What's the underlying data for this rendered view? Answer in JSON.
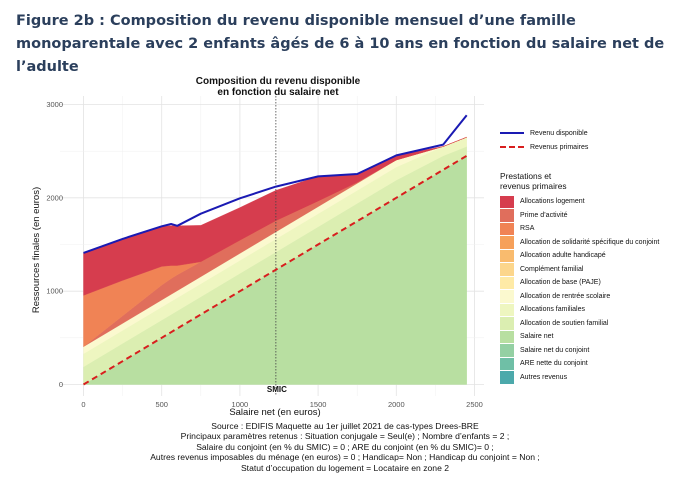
{
  "figure_title": "Figure 2b : Composition du revenu disponible mensuel d’une famille monoparentale avec 2 enfants âgés de 6 à 10 ans en fonction du salaire net de l’adulte",
  "chart_data": {
    "type": "area",
    "title_line1": "Composition du revenu disponible",
    "title_line2": "en fonction du salaire net",
    "xlabel": "Salaire net (en euros)",
    "ylabel": "Ressources finales (en euros)",
    "xlim": [
      0,
      2500
    ],
    "ylim": [
      0,
      3000
    ],
    "x_ticks": [
      0,
      500,
      1000,
      1500,
      2000,
      2500
    ],
    "y_ticks": [
      0,
      1000,
      2000,
      3000
    ],
    "vline": {
      "x": 1230,
      "label": "SMIC"
    },
    "x": [
      0,
      250,
      500,
      560,
      600,
      750,
      1000,
      1230,
      1500,
      1750,
      2000,
      2300,
      2450
    ],
    "stack_series": [
      {
        "name": "Salaire net",
        "color": "#b8dfa1",
        "values": [
          0,
          250,
          500,
          560,
          600,
          750,
          1000,
          1230,
          1500,
          1750,
          2000,
          2300,
          2450
        ]
      },
      {
        "name": "Allocation de soutien familial",
        "color": "#dbeeb1",
        "values": [
          190,
          190,
          190,
          190,
          190,
          190,
          190,
          190,
          190,
          190,
          190,
          150,
          100
        ]
      },
      {
        "name": "Allocations familiales",
        "color": "#eef6c0",
        "values": [
          140,
          140,
          140,
          140,
          140,
          140,
          140,
          140,
          140,
          140,
          140,
          100,
          100
        ]
      },
      {
        "name": "Allocation de rentrée scolaire",
        "color": "#fbf9cf",
        "values": [
          75,
          75,
          75,
          75,
          75,
          75,
          75,
          75,
          75,
          75,
          75,
          0,
          0
        ]
      },
      {
        "name": "Prime d'activité",
        "color": "#e06e5c",
        "values": [
          0,
          80,
          160,
          170,
          170,
          160,
          140,
          120,
          60,
          10,
          0,
          0,
          0
        ]
      },
      {
        "name": "RSA",
        "color": "#f08355",
        "values": [
          550,
          380,
          200,
          140,
          100,
          0,
          0,
          0,
          0,
          0,
          0,
          0,
          0
        ]
      },
      {
        "name": "Allocations logement",
        "color": "#d63d4e",
        "values": [
          455,
          445,
          430,
          425,
          425,
          390,
          350,
          325,
          265,
          90,
          50,
          0,
          0
        ]
      }
    ],
    "lines": [
      {
        "name": "Revenu disponible",
        "color": "#1a1ab3",
        "style": "solid",
        "values": [
          1410,
          1560,
          1695,
          1720,
          1700,
          1830,
          1995,
          2120,
          2230,
          2255,
          2455,
          2570,
          2885
        ]
      },
      {
        "name": "Revenus primaires",
        "color": "#d81e1e",
        "style": "dashed",
        "values": [
          0,
          250,
          500,
          560,
          600,
          750,
          1000,
          1230,
          1500,
          1750,
          2000,
          2300,
          2450
        ]
      }
    ]
  },
  "legend": {
    "lines": [
      {
        "label": "Revenu disponible",
        "color": "#1a1ab3",
        "style": "solid"
      },
      {
        "label": "Revenus primaires",
        "color": "#d81e1e",
        "style": "dashed"
      }
    ],
    "title_line1": "Prestations et",
    "title_line2": "revenus primaires",
    "items": [
      {
        "label": "Allocations logement",
        "color": "#d63d4e"
      },
      {
        "label": "Prime d’activité",
        "color": "#e06e5c"
      },
      {
        "label": "RSA",
        "color": "#f08355"
      },
      {
        "label": "Allocation de solidarité spécifique du conjoint",
        "color": "#f6a05a"
      },
      {
        "label": "Allocation adulte handicapé",
        "color": "#f9bb6e"
      },
      {
        "label": "Complément familial",
        "color": "#fcd68c"
      },
      {
        "label": "Allocation de base (PAJE)",
        "color": "#feeaa6"
      },
      {
        "label": "Allocation de rentrée scolaire",
        "color": "#fbf9cf"
      },
      {
        "label": "Allocations familiales",
        "color": "#eef6c0"
      },
      {
        "label": "Allocation de soutien familial",
        "color": "#dbeeb1"
      },
      {
        "label": "Salaire net",
        "color": "#b8dfa1"
      },
      {
        "label": "Salaire net du conjoint",
        "color": "#94d0a3"
      },
      {
        "label": "ARE nette du conjoint",
        "color": "#6fbfa6"
      },
      {
        "label": "Autres revenus",
        "color": "#4ca9ab"
      }
    ]
  },
  "source_lines": [
    "Source : EDIFIS Maquette au 1er juillet 2021 de cas-types Drees-BRE",
    "Principaux paramètres retenus : Situation conjugale = Seul(e) ; Nombre d’enfants = 2 ;",
    "Salaire du conjoint (en % du SMIC) = 0 ; ARE du conjoint (en % du SMIC)= 0 ;",
    "Autres revenus imposables du ménage (en euros) = 0 ; Handicap= Non ; Handicap du conjoint = Non ;",
    "Statut d’occupation du logement = Locataire en zone 2"
  ]
}
